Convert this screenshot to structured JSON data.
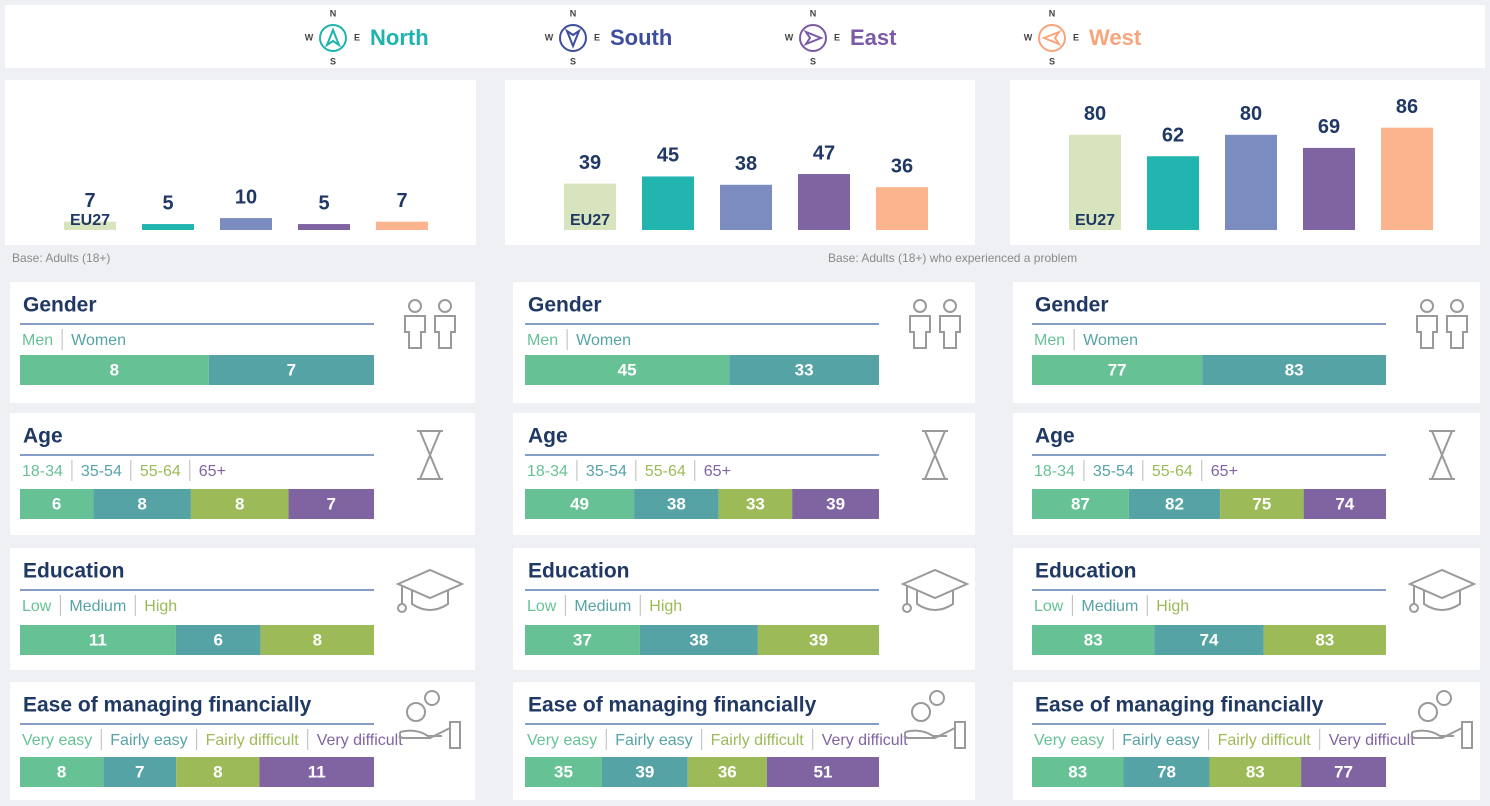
{
  "legend": [
    {
      "label": "North",
      "color": "#1fb3ad"
    },
    {
      "label": "South",
      "color": "#3e4e9e"
    },
    {
      "label": "East",
      "color": "#7b5aa6"
    },
    {
      "label": "West",
      "color": "#f7a57c"
    }
  ],
  "compass_letters": [
    "N",
    "W",
    "E",
    "S"
  ],
  "chart_data": [
    {
      "type": "bar",
      "categories": [
        "EU27",
        null,
        null,
        null,
        null
      ],
      "values": [
        7,
        5,
        10,
        5,
        7
      ],
      "colors": [
        "#d7e4bd",
        "#22b5b0",
        "#7b8cc1",
        "#8064a2",
        "#fbb48e"
      ],
      "ylim": [
        0,
        100
      ]
    },
    {
      "type": "bar",
      "categories": [
        "EU27",
        null,
        null,
        null,
        null
      ],
      "values": [
        39,
        45,
        38,
        47,
        36
      ],
      "colors": [
        "#d7e4bd",
        "#22b5b0",
        "#7b8cc1",
        "#8064a2",
        "#fbb48e"
      ],
      "ylim": [
        0,
        100
      ]
    },
    {
      "type": "bar",
      "categories": [
        "EU27",
        null,
        null,
        null,
        null
      ],
      "values": [
        80,
        62,
        80,
        69,
        86
      ],
      "colors": [
        "#d7e4bd",
        "#22b5b0",
        "#7b8cc1",
        "#8064a2",
        "#fbb48e"
      ],
      "ylim": [
        0,
        100
      ]
    }
  ],
  "base_notes": [
    "Base: Adults (18+)",
    "Base: Adults (18+) who experienced a problem"
  ],
  "segment_colors": [
    "#66c295",
    "#56a3a6",
    "#9cbb58",
    "#8064a2"
  ],
  "panels": [
    [
      {
        "title": "Gender",
        "categories": [
          "Men",
          "Women"
        ],
        "values": [
          8,
          7
        ]
      },
      {
        "title": "Age",
        "categories": [
          "18-34",
          "35-54",
          "55-64",
          "65+"
        ],
        "values": [
          6,
          8,
          8,
          7
        ]
      },
      {
        "title": "Education",
        "categories": [
          "Low",
          "Medium",
          "High"
        ],
        "values": [
          11,
          6,
          8
        ]
      },
      {
        "title": "Ease of managing financially",
        "categories": [
          "Very easy",
          "Fairly easy",
          "Fairly difficult",
          "Very difficult"
        ],
        "values": [
          8,
          7,
          8,
          11
        ]
      }
    ],
    [
      {
        "title": "Gender",
        "categories": [
          "Men",
          "Women"
        ],
        "values": [
          45,
          33
        ]
      },
      {
        "title": "Age",
        "categories": [
          "18-34",
          "35-54",
          "55-64",
          "65+"
        ],
        "values": [
          49,
          38,
          33,
          39
        ]
      },
      {
        "title": "Education",
        "categories": [
          "Low",
          "Medium",
          "High"
        ],
        "values": [
          37,
          38,
          39
        ]
      },
      {
        "title": "Ease of managing financially",
        "categories": [
          "Very easy",
          "Fairly easy",
          "Fairly difficult",
          "Very difficult"
        ],
        "values": [
          35,
          39,
          36,
          51
        ]
      }
    ],
    [
      {
        "title": "Gender",
        "categories": [
          "Men",
          "Women"
        ],
        "values": [
          77,
          83
        ]
      },
      {
        "title": "Age",
        "categories": [
          "18-34",
          "35-54",
          "55-64",
          "65+"
        ],
        "values": [
          87,
          82,
          75,
          74
        ]
      },
      {
        "title": "Education",
        "categories": [
          "Low",
          "Medium",
          "High"
        ],
        "values": [
          83,
          74,
          83
        ]
      },
      {
        "title": "Ease of managing financially",
        "categories": [
          "Very easy",
          "Fairly easy",
          "Fairly difficult",
          "Very difficult"
        ],
        "values": [
          83,
          78,
          83,
          77
        ]
      }
    ]
  ]
}
